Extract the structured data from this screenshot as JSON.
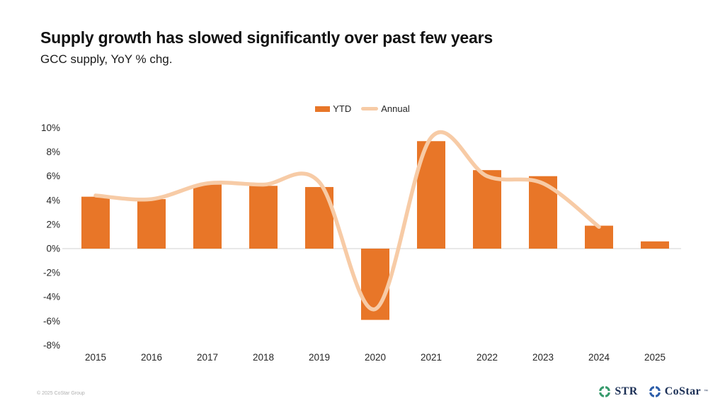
{
  "header": {
    "title": "Supply growth has slowed significantly over past few years",
    "subtitle": "GCC supply, YoY % chg."
  },
  "legend": {
    "items": [
      {
        "label": "YTD",
        "type": "bar-swatch"
      },
      {
        "label": "Annual",
        "type": "line-swatch"
      }
    ]
  },
  "chart_data": {
    "type": "bar",
    "title": "GCC supply, YoY % chg.",
    "categories": [
      "2015",
      "2016",
      "2017",
      "2018",
      "2019",
      "2020",
      "2021",
      "2022",
      "2023",
      "2024",
      "2025"
    ],
    "series": [
      {
        "name": "YTD",
        "type": "bar",
        "color": "#E87628",
        "values": [
          4.3,
          4.1,
          5.3,
          5.2,
          5.1,
          -5.9,
          8.9,
          6.5,
          6.0,
          1.9,
          0.6
        ]
      },
      {
        "name": "Annual",
        "type": "line",
        "smooth": true,
        "color": "#F7CBA6",
        "values": [
          4.4,
          4.1,
          5.4,
          5.3,
          5.5,
          -5.0,
          9.2,
          6.0,
          5.4,
          1.8,
          null
        ]
      }
    ],
    "y_axis": {
      "unit": "%",
      "ticks": [
        10,
        8,
        6,
        4,
        2,
        0,
        -2,
        -4,
        -6,
        -8
      ],
      "tick_labels": [
        "10%",
        "8%",
        "6%",
        "4%",
        "2%",
        "0%",
        "-2%",
        "-4%",
        "-6%",
        "-8%"
      ],
      "ylim": [
        -8,
        10
      ]
    },
    "grid": "zero-line-only",
    "legend_position": "top-center",
    "colors": {
      "zero_line": "#D9D9D9",
      "axis_text": "#262626"
    }
  },
  "footer": {
    "copyright": "© 2025 CoStar Group",
    "logos": [
      {
        "name": "STR",
        "text": "STR",
        "trademark": "",
        "icon_color": "#35996B",
        "text_color": "#1B2F55"
      },
      {
        "name": "CoStar",
        "text": "CoStar",
        "trademark": "™",
        "icon_color": "#2B5CA8",
        "text_color": "#1B2F55"
      }
    ]
  }
}
